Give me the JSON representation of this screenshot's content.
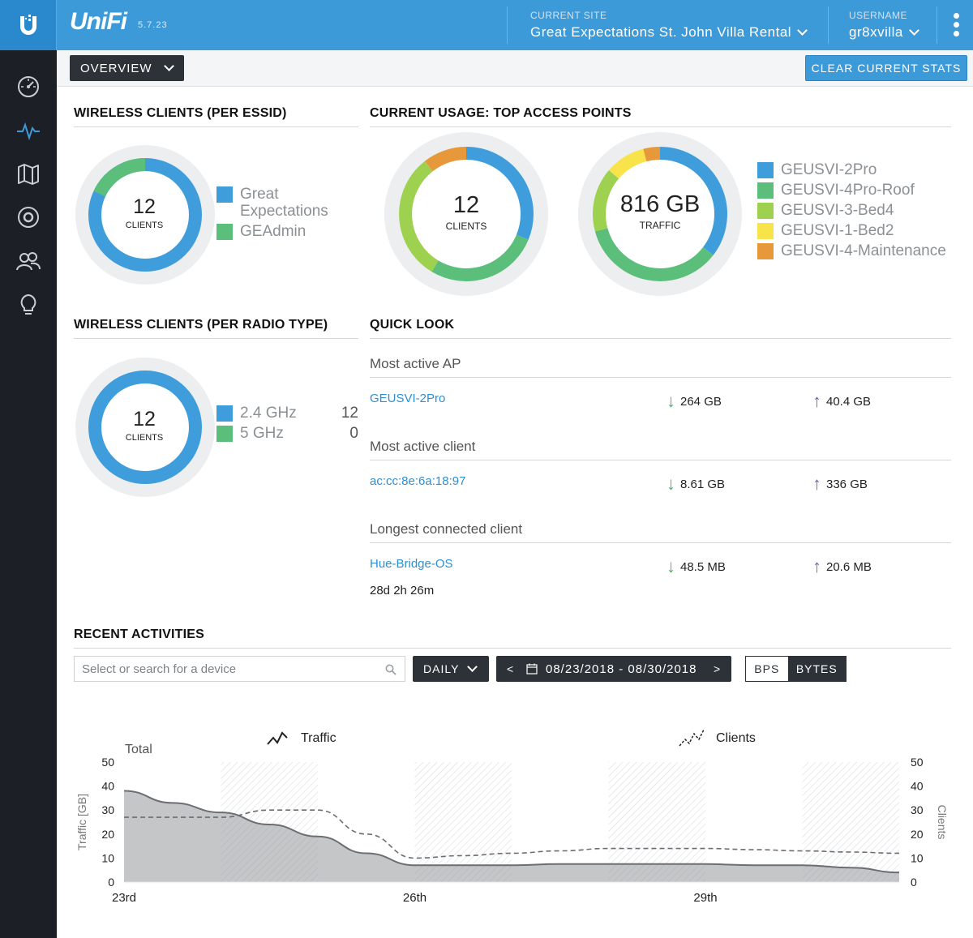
{
  "header": {
    "brand": "UniFi",
    "version": "5.7.23",
    "site_label": "CURRENT SITE",
    "site_value": "Great Expectations St. John Villa Rental",
    "user_label": "USERNAME",
    "user_value": "gr8xvilla"
  },
  "toolbar": {
    "view_select": "OVERVIEW",
    "clear_button": "CLEAR CURRENT STATS"
  },
  "colors": {
    "blue": "#3f9ddb",
    "green": "#5bbe7a",
    "lime": "#9dd14f",
    "yellow": "#f8e44a",
    "orange": "#e7983a",
    "ring": "#eceef0"
  },
  "essid": {
    "title": "WIRELESS CLIENTS (PER ESSID)",
    "count": "12",
    "unit": "CLIENTS",
    "legend": [
      "Great Expectations",
      "GEAdmin"
    ]
  },
  "top_ap": {
    "title": "CURRENT USAGE: TOP ACCESS POINTS",
    "clients_count": "12",
    "clients_unit": "CLIENTS",
    "traffic_value": "816 GB",
    "traffic_unit": "TRAFFIC",
    "legend": [
      "GEUSVI-2Pro",
      "GEUSVI-4Pro-Roof",
      "GEUSVI-3-Bed4",
      "GEUSVI-1-Bed2",
      "GEUSVI-4-Maintenance"
    ]
  },
  "radio": {
    "title": "WIRELESS CLIENTS (PER RADIO TYPE)",
    "count": "12",
    "unit": "CLIENTS",
    "legend": [
      {
        "label": "2.4 GHz",
        "value": "12"
      },
      {
        "label": "5 GHz",
        "value": "0"
      }
    ]
  },
  "quick_look": {
    "title": "QUICK LOOK",
    "ap_heading": "Most active AP",
    "ap_name": "GEUSVI-2Pro",
    "ap_down": "264 GB",
    "ap_up": "40.4 GB",
    "client_heading": "Most active client",
    "client_name": "ac:cc:8e:6a:18:97",
    "client_down": "8.61 GB",
    "client_up": "336 GB",
    "longest_heading": "Longest connected client",
    "longest_name": "Hue-Bridge-OS",
    "longest_down": "48.5 MB",
    "longest_up": "20.6 MB",
    "longest_duration": "28d 2h 26m"
  },
  "activities": {
    "title": "RECENT ACTIVITIES",
    "search_placeholder": "Select or search for a device",
    "interval": "DAILY",
    "date_range": "08/23/2018 - 08/30/2018",
    "prev": "<",
    "next": ">",
    "toggle_bps": "BPS",
    "toggle_bytes": "BYTES"
  },
  "chart_data": {
    "type": "area",
    "title": "Total",
    "legend": [
      "Traffic",
      "Clients"
    ],
    "ylabel": "Traffic [GB]",
    "y2label": "Clients",
    "ylim": [
      0,
      50
    ],
    "y2lim": [
      0,
      50
    ],
    "yticks": [
      "0",
      "10",
      "20",
      "30",
      "40",
      "50"
    ],
    "x_tick_labels": [
      "23rd",
      "26th",
      "29th"
    ],
    "x": [
      0,
      0.5,
      1,
      1.5,
      2,
      2.5,
      3,
      3.5,
      4,
      4.5,
      5,
      5.5,
      6,
      6.5,
      7,
      7.5,
      8
    ],
    "series": [
      {
        "name": "Traffic",
        "values": [
          38,
          33,
          29,
          24,
          19,
          12,
          7,
          7,
          7,
          7.5,
          7.5,
          7.5,
          7.5,
          7,
          7,
          6,
          4
        ]
      },
      {
        "name": "Clients",
        "values": [
          27,
          27,
          27,
          30,
          30,
          20,
          10,
          11,
          12,
          13,
          14,
          14,
          14,
          13.5,
          13,
          12.5,
          12
        ]
      }
    ],
    "hatched_days": [
      1,
      3,
      5,
      7
    ]
  }
}
